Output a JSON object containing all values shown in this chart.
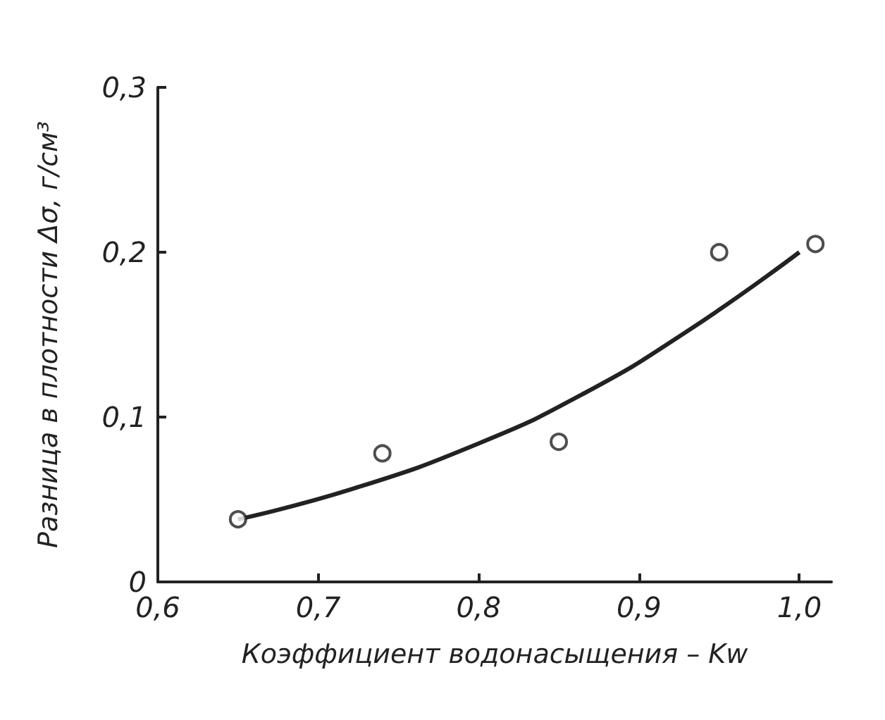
{
  "chart_data": {
    "type": "scatter",
    "xlabel": "Коэффициент водонасыщения – Kw",
    "ylabel": "Разница в плотности Δσ, г/см³",
    "xlim": [
      0.6,
      1.02
    ],
    "ylim": [
      0,
      0.3
    ],
    "xticks": [
      {
        "value": 0.6,
        "label": "0,6"
      },
      {
        "value": 0.7,
        "label": "0,7"
      },
      {
        "value": 0.8,
        "label": "0,8"
      },
      {
        "value": 0.9,
        "label": "0,9"
      },
      {
        "value": 1.0,
        "label": "1,0"
      }
    ],
    "yticks": [
      0,
      {
        "value": 0.1,
        "label": "0,1"
      },
      {
        "value": 0.2,
        "label": "0,2"
      },
      {
        "value": 0.3,
        "label": "0,3"
      }
    ],
    "series": [
      {
        "marker": "circle",
        "color": "#222222",
        "x": [
          0.65,
          0.74,
          0.85,
          0.95,
          1.01
        ],
        "values": [
          0.038,
          0.078,
          0.085,
          0.2,
          0.205
        ]
      },
      {
        "type": "line",
        "marker": "none",
        "line_style": "solid",
        "color": "#222222",
        "x": [
          0.65,
          0.72,
          0.8,
          0.865,
          0.93,
          1.0
        ],
        "values": [
          0.038,
          0.056,
          0.084,
          0.114,
          0.152,
          0.2
        ]
      }
    ],
    "grid": false
  }
}
